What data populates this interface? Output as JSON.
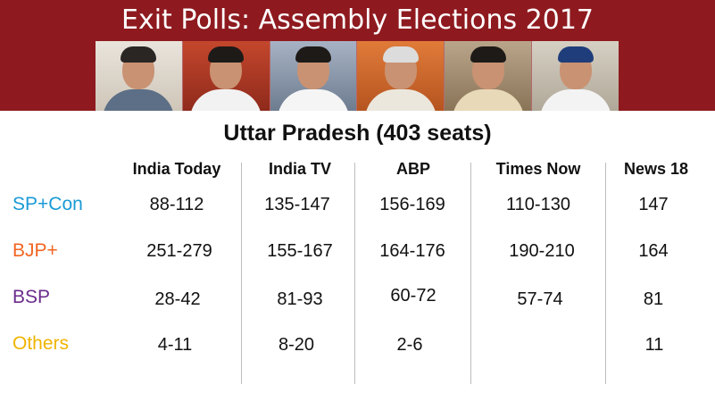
{
  "banner": {
    "title": "Exit Polls: Assembly Elections 2017",
    "color": "#8e1a1f",
    "photos": [
      {
        "name": "leader-photo-1"
      },
      {
        "name": "leader-photo-2"
      },
      {
        "name": "leader-photo-3"
      },
      {
        "name": "leader-photo-4"
      },
      {
        "name": "leader-photo-5"
      },
      {
        "name": "leader-photo-6"
      }
    ]
  },
  "table": {
    "subtitle": "Uttar Pradesh (403 seats)",
    "columns": [
      "India Today",
      "India TV",
      "ABP",
      "Times Now",
      "News 18"
    ],
    "rows": [
      {
        "label": "SP+Con",
        "color": "#1a9ad6",
        "values": [
          "88-112",
          "135-147",
          "156-169",
          "110-130",
          "147"
        ]
      },
      {
        "label": "BJP+",
        "color": "#f26522",
        "values": [
          "251-279",
          "155-167",
          "164-176",
          "190-210",
          "164"
        ]
      },
      {
        "label": "BSP",
        "color": "#6a2b8c",
        "values": [
          "28-42",
          "81-93",
          "60-72",
          "57-74",
          "81"
        ]
      },
      {
        "label": "Others",
        "color": "#f0b400",
        "values": [
          "4-11",
          "8-20",
          "2-6",
          "",
          "11"
        ]
      }
    ]
  }
}
